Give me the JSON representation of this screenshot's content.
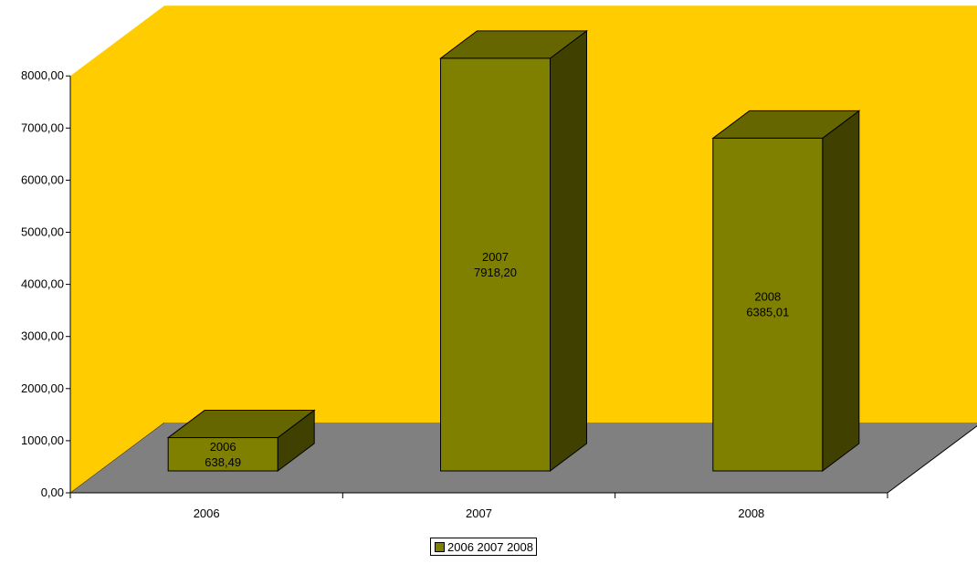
{
  "colors": {
    "back_wall": "#FFCC00",
    "floor": "#808080",
    "bar_front": "#808000",
    "bar_top": "#666600",
    "bar_side": "#404000",
    "outline": "#000000",
    "background": "#FFFFFF"
  },
  "chart_data": {
    "type": "bar",
    "style": "3d-column",
    "categories": [
      "2006",
      "2007",
      "2008"
    ],
    "series": [
      {
        "name": "2006 2007 2008",
        "values": [
          638.49,
          7918.2,
          6385.01
        ]
      }
    ],
    "data_labels": [
      {
        "category": "2006",
        "value": "638,49"
      },
      {
        "category": "2007",
        "value": "7918,20"
      },
      {
        "category": "2008",
        "value": "6385,01"
      }
    ],
    "ylim": [
      0,
      8000
    ],
    "yticks": [
      "0,00",
      "1000,00",
      "2000,00",
      "3000,00",
      "4000,00",
      "5000,00",
      "6000,00",
      "7000,00",
      "8000,00"
    ],
    "title": "",
    "xlabel": "",
    "ylabel": "",
    "legend_position": "bottom",
    "grid": false
  },
  "legend": {
    "label": "2006 2007 2008"
  }
}
